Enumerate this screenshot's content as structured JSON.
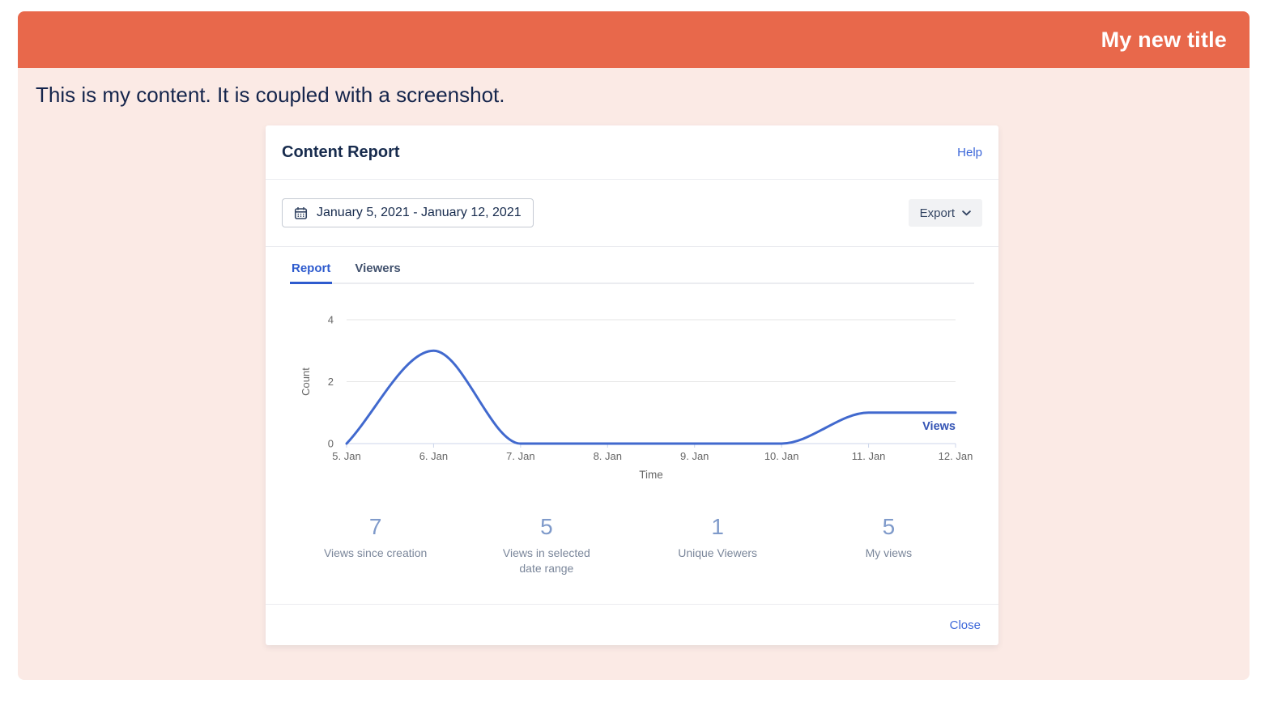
{
  "page": {
    "header": {
      "title": "My new title",
      "bg_color": "#e8684b"
    },
    "body_text": "This is my content. It is coupled with a screenshot.",
    "body_bg_color": "#fbeae5"
  },
  "dialog": {
    "title": "Content Report",
    "help_link": "Help",
    "toolbar": {
      "date_range": "January 5, 2021 - January 12, 2021",
      "export_label": "Export"
    },
    "tabs": [
      {
        "label": "Report",
        "active": true
      },
      {
        "label": "Viewers",
        "active": false
      }
    ],
    "stats": [
      {
        "value": "7",
        "label": "Views since creation"
      },
      {
        "value": "5",
        "label": "Views in selected date range"
      },
      {
        "value": "1",
        "label": "Unique Viewers"
      },
      {
        "value": "5",
        "label": "My views"
      }
    ],
    "footer": {
      "close_label": "Close"
    }
  },
  "chart_data": {
    "type": "line",
    "x": [
      "5. Jan",
      "6. Jan",
      "7. Jan",
      "8. Jan",
      "9. Jan",
      "10. Jan",
      "11. Jan",
      "12. Jan"
    ],
    "series": [
      {
        "name": "Views",
        "values": [
          0,
          3,
          0,
          0,
          0,
          0,
          1,
          1
        ]
      }
    ],
    "title": "",
    "xlabel": "Time",
    "ylabel": "Count",
    "ylim": [
      0,
      4
    ],
    "yticks": [
      0,
      2,
      4
    ],
    "grid": true,
    "smooth": true,
    "legend_position": "end-of-line",
    "line_color": "#4169ce",
    "series_label_color": "#3353b4",
    "axis_line_color": "#ccd6eb",
    "grid_color": "#e6e6e6",
    "axis_text_color": "#666666"
  }
}
